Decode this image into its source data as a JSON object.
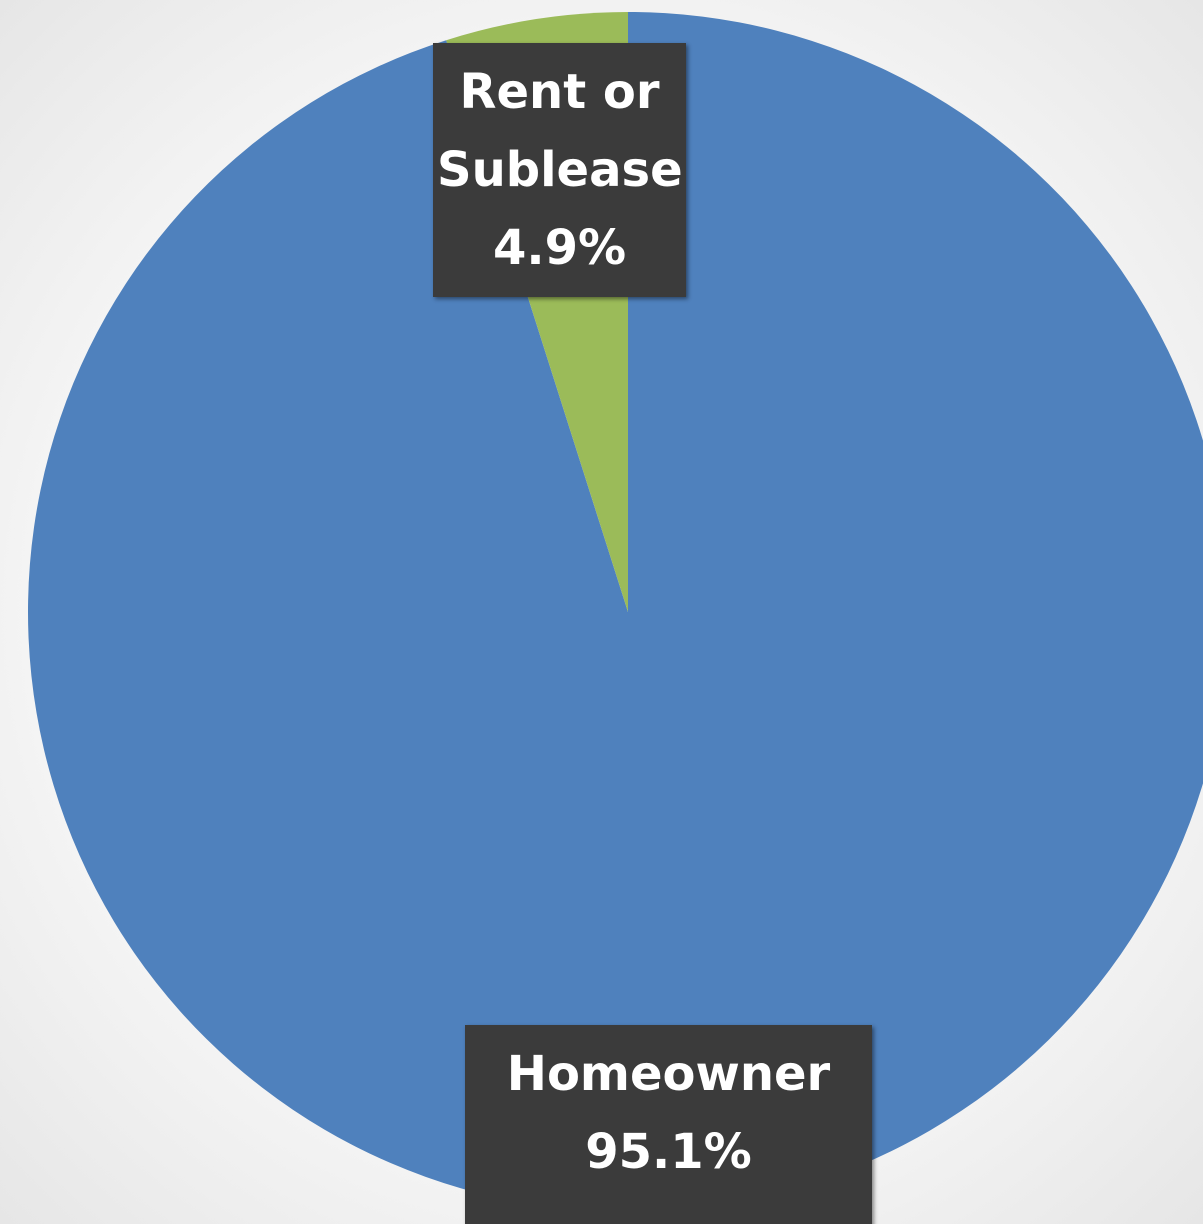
{
  "chart_data": {
    "type": "pie",
    "categories": [
      "Homeowner",
      "Rent or Sublease"
    ],
    "values": [
      95.1,
      4.9
    ],
    "value_labels": [
      "95.1%",
      "4.9%"
    ],
    "colors": [
      "#4f81bd",
      "#9bbb59"
    ]
  }
}
